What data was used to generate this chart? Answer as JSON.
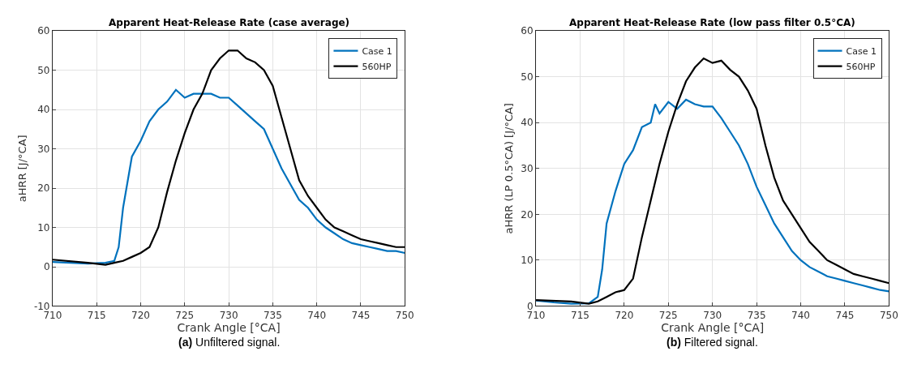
{
  "chart_data": [
    {
      "type": "line",
      "title": "Apparent Heat-Release Rate (case average)",
      "xlabel": "Crank Angle [°CA]",
      "ylabel": "aHRR [J/°CA]",
      "annotations": [
        "(a) Unfiltered signal."
      ],
      "xlim": [
        710,
        750
      ],
      "xticks": [
        710,
        715,
        720,
        725,
        730,
        735,
        740,
        745,
        750
      ],
      "ylim": [
        -10,
        60
      ],
      "yticks": [
        -10,
        0,
        10,
        20,
        30,
        40,
        50,
        60
      ],
      "grid": true,
      "legend": "top right",
      "series": [
        {
          "name": "Case 1",
          "color": "#0072bd",
          "x": [
            710,
            712,
            714,
            716,
            717,
            717.5,
            718,
            719,
            720,
            721,
            722,
            723,
            724,
            725,
            726,
            727,
            728,
            729,
            730,
            731,
            732,
            733,
            734,
            735,
            736,
            737,
            738,
            739,
            740,
            741,
            742,
            743,
            744,
            745,
            746,
            747,
            748,
            749,
            750
          ],
          "values": [
            1.2,
            1,
            0.8,
            1,
            1.5,
            5,
            15,
            28,
            32,
            37,
            40,
            42,
            45,
            43,
            44,
            44,
            44,
            43,
            43,
            41,
            39,
            37,
            35,
            30,
            25,
            21,
            17,
            15,
            12,
            10,
            8.5,
            7,
            6,
            5.5,
            5,
            4.5,
            4,
            4,
            3.5
          ]
        },
        {
          "name": "560HP",
          "color": "#000000",
          "x": [
            710,
            714,
            716,
            717,
            718,
            719,
            720,
            721,
            722,
            723,
            724,
            725,
            726,
            727,
            728,
            729,
            730,
            731,
            732,
            733,
            734,
            735,
            736,
            737,
            738,
            739,
            740,
            741,
            742,
            743,
            744,
            745,
            746,
            747,
            748,
            749,
            750
          ],
          "values": [
            1.8,
            1,
            0.5,
            1,
            1.5,
            2.5,
            3.5,
            5,
            10,
            19,
            27,
            34,
            40,
            44,
            50,
            53,
            55,
            55,
            53,
            52,
            50,
            46,
            38,
            30,
            22,
            18,
            15,
            12,
            10,
            9,
            8,
            7,
            6.5,
            6,
            5.5,
            5,
            5
          ]
        }
      ]
    },
    {
      "type": "line",
      "title": "Apparent Heat-Release Rate (low pass filter 0.5°CA)",
      "xlabel": "Crank Angle [°CA]",
      "ylabel": "aHRR (LP 0.5°CA) [J/°CA]",
      "annotations": [
        "(b) Filtered signal."
      ],
      "xlim": [
        710,
        750
      ],
      "xticks": [
        710,
        715,
        720,
        725,
        730,
        735,
        740,
        745,
        750
      ],
      "ylim": [
        0,
        60
      ],
      "yticks": [
        0,
        10,
        20,
        30,
        40,
        50,
        60
      ],
      "grid": true,
      "legend": "top right",
      "series": [
        {
          "name": "Case 1",
          "color": "#0072bd",
          "x": [
            710,
            712,
            714,
            716,
            717,
            717.5,
            718,
            719,
            720,
            721,
            722,
            723,
            723.5,
            724,
            725,
            726,
            727,
            728,
            729,
            730,
            731,
            732,
            733,
            734,
            735,
            736,
            737,
            738,
            739,
            740,
            741,
            742,
            743,
            744,
            745,
            746,
            747,
            748,
            749,
            750
          ],
          "values": [
            1.2,
            0.8,
            0.5,
            0.6,
            2,
            8,
            18,
            25,
            31,
            34,
            39,
            40,
            44,
            42,
            44.5,
            43,
            45,
            44,
            43.5,
            43.5,
            41,
            38,
            35,
            31,
            26,
            22,
            18,
            15,
            12,
            10,
            8.5,
            7.5,
            6.5,
            6,
            5.5,
            5,
            4.5,
            4,
            3.5,
            3.2
          ]
        },
        {
          "name": "560HP",
          "color": "#000000",
          "x": [
            710,
            714,
            716,
            717,
            718,
            719,
            720,
            721,
            722,
            723,
            724,
            725,
            726,
            727,
            728,
            729,
            730,
            731,
            732,
            733,
            734,
            735,
            736,
            737,
            738,
            739,
            740,
            741,
            742,
            743,
            744,
            745,
            746,
            747,
            748,
            749,
            750
          ],
          "values": [
            1.3,
            1,
            0.5,
            1,
            2,
            3,
            3.5,
            6,
            15,
            23,
            31,
            38,
            44,
            49,
            52,
            54,
            53,
            53.5,
            51.5,
            50,
            47,
            43,
            35,
            28,
            23,
            20,
            17,
            14,
            12,
            10,
            9,
            8,
            7,
            6.5,
            6,
            5.5,
            5
          ]
        }
      ]
    }
  ]
}
